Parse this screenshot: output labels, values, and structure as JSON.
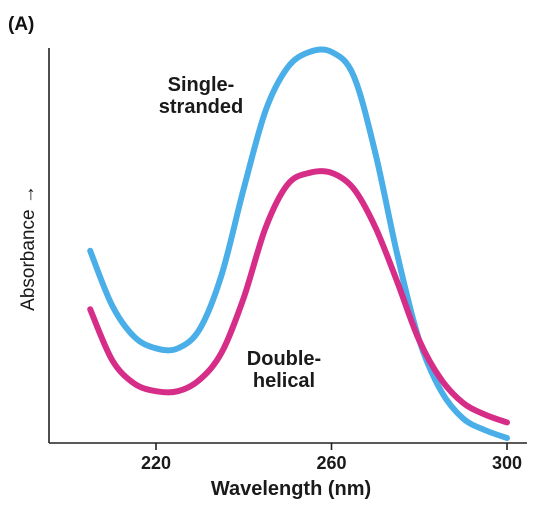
{
  "panel_label": "(A)",
  "chart_data": {
    "type": "line",
    "xlabel": "Wavelength (nm)",
    "ylabel": "Absorbance →",
    "xlim": [
      200,
      300
    ],
    "ylim": [
      0,
      1
    ],
    "ticks": [
      220,
      260,
      300
    ],
    "tick_labels": [
      "220",
      "260",
      "300"
    ],
    "grid": false,
    "legend": "none",
    "series": [
      {
        "name": "Single-stranded",
        "color": "#4aaee8",
        "label_lines": [
          "Single-",
          "stranded"
        ],
        "x": [
          205,
          210,
          215,
          220,
          225,
          230,
          235,
          240,
          245,
          250,
          255,
          260,
          265,
          270,
          275,
          280,
          285,
          290,
          295,
          300
        ],
        "y": [
          0.48,
          0.34,
          0.26,
          0.23,
          0.23,
          0.28,
          0.42,
          0.64,
          0.84,
          0.95,
          0.99,
          0.99,
          0.93,
          0.73,
          0.47,
          0.25,
          0.12,
          0.05,
          0.02,
          0.0
        ]
      },
      {
        "name": "Double-helical",
        "color": "#d62e88",
        "label_lines": [
          "Double-",
          "helical"
        ],
        "x": [
          205,
          210,
          215,
          220,
          225,
          230,
          235,
          240,
          245,
          250,
          255,
          260,
          265,
          270,
          275,
          280,
          285,
          290,
          295,
          300
        ],
        "y": [
          0.33,
          0.2,
          0.14,
          0.12,
          0.12,
          0.15,
          0.22,
          0.36,
          0.54,
          0.65,
          0.68,
          0.68,
          0.64,
          0.54,
          0.4,
          0.25,
          0.15,
          0.09,
          0.06,
          0.04
        ]
      }
    ]
  }
}
